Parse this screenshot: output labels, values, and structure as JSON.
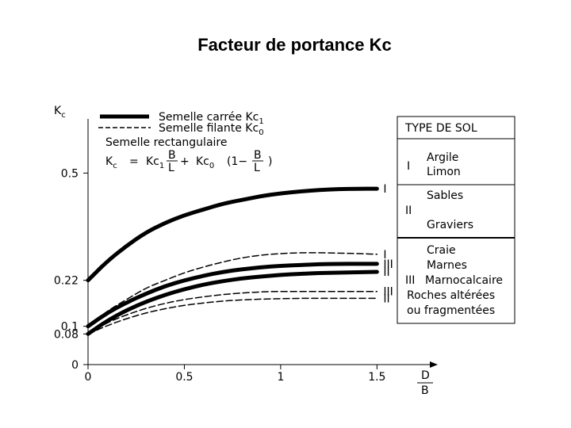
{
  "title": "Facteur de portance Kc",
  "chart_data": {
    "type": "line",
    "xlabel": {
      "num": "D",
      "den": "B"
    },
    "ylabel": {
      "base": "K",
      "sub": "c"
    },
    "xlim": [
      0,
      1.7
    ],
    "ylim": [
      0,
      0.62
    ],
    "x_ticks": [
      {
        "value": 0,
        "label": "0"
      },
      {
        "value": 0.5,
        "label": "0.5"
      },
      {
        "value": 1,
        "label": "1"
      },
      {
        "value": 1.5,
        "label": "1.5"
      }
    ],
    "y_ticks": [
      {
        "value": 0,
        "label": "0"
      },
      {
        "value": 0.08,
        "label": "0.08"
      },
      {
        "value": 0.1,
        "label": "0.1"
      },
      {
        "value": 0.22,
        "label": "0.22"
      },
      {
        "value": 0.5,
        "label": "0.5"
      }
    ],
    "legend": {
      "solid": {
        "text": "Semelle carrée Kc",
        "sub": "1"
      },
      "dashed": {
        "text": "Semelle filante Kc",
        "sub": "0"
      },
      "rect_title": "Semelle rectangulaire",
      "formula": {
        "lhs": "K",
        "lhs_sub": "c",
        "eq": "=",
        "t1": "Kc",
        "t1_sub": "1",
        "plus": "+",
        "t2": "Kc",
        "t2_sub": "0",
        "paren": "(1−",
        "close": ")",
        "frac_num": "B",
        "frac_den": "L"
      }
    },
    "series": [
      {
        "style": "solid",
        "soil": "I",
        "x": [
          0,
          0.1,
          0.2,
          0.3,
          0.4,
          0.5,
          0.6,
          0.7,
          0.8,
          0.9,
          1.0,
          1.1,
          1.2,
          1.3,
          1.4,
          1.5
        ],
        "y": [
          0.22,
          0.27,
          0.31,
          0.345,
          0.37,
          0.39,
          0.405,
          0.42,
          0.43,
          0.44,
          0.447,
          0.452,
          0.456,
          0.458,
          0.459,
          0.459
        ]
      },
      {
        "style": "dashed",
        "soil": "I",
        "x": [
          0,
          0.1,
          0.2,
          0.3,
          0.4,
          0.5,
          0.6,
          0.7,
          0.8,
          0.9,
          1.0,
          1.1,
          1.2,
          1.3,
          1.4,
          1.5
        ],
        "y": [
          0.1,
          0.14,
          0.17,
          0.2,
          0.22,
          0.24,
          0.255,
          0.268,
          0.279,
          0.286,
          0.29,
          0.292,
          0.292,
          0.291,
          0.29,
          0.288
        ]
      },
      {
        "style": "solid",
        "soil": "III",
        "x": [
          0,
          0.1,
          0.2,
          0.3,
          0.4,
          0.5,
          0.6,
          0.7,
          0.8,
          0.9,
          1.0,
          1.1,
          1.2,
          1.3,
          1.4,
          1.5
        ],
        "y": [
          0.1,
          0.135,
          0.162,
          0.185,
          0.205,
          0.22,
          0.232,
          0.242,
          0.249,
          0.254,
          0.258,
          0.26,
          0.262,
          0.263,
          0.263,
          0.263
        ]
      },
      {
        "style": "solid",
        "soil": "II",
        "x": [
          0,
          0.1,
          0.2,
          0.3,
          0.4,
          0.5,
          0.6,
          0.7,
          0.8,
          0.9,
          1.0,
          1.1,
          1.2,
          1.3,
          1.4,
          1.5
        ],
        "y": [
          0.08,
          0.115,
          0.142,
          0.164,
          0.182,
          0.197,
          0.209,
          0.218,
          0.225,
          0.23,
          0.234,
          0.237,
          0.239,
          0.24,
          0.241,
          0.242
        ]
      },
      {
        "style": "dashed",
        "soil": "III",
        "x": [
          0,
          0.1,
          0.2,
          0.3,
          0.4,
          0.5,
          0.6,
          0.7,
          0.8,
          0.9,
          1.0,
          1.1,
          1.2,
          1.3,
          1.4,
          1.5
        ],
        "y": [
          0.08,
          0.11,
          0.13,
          0.147,
          0.16,
          0.17,
          0.177,
          0.183,
          0.187,
          0.19,
          0.191,
          0.191,
          0.191,
          0.191,
          0.191,
          0.191
        ]
      },
      {
        "style": "dashed",
        "soil": "II",
        "x": [
          0,
          0.1,
          0.2,
          0.3,
          0.4,
          0.5,
          0.6,
          0.7,
          0.8,
          0.9,
          1.0,
          1.1,
          1.2,
          1.3,
          1.4,
          1.5
        ],
        "y": [
          0.08,
          0.102,
          0.12,
          0.135,
          0.146,
          0.155,
          0.161,
          0.166,
          0.169,
          0.171,
          0.172,
          0.173,
          0.173,
          0.173,
          0.173,
          0.173
        ]
      }
    ],
    "end_labels": [
      {
        "text": "I",
        "y": 0.459
      },
      {
        "text": "I",
        "y": 0.288
      },
      {
        "text": "III",
        "y": 0.263
      },
      {
        "text": "II",
        "y": 0.242
      },
      {
        "text": "III",
        "y": 0.191
      },
      {
        "text": "II",
        "y": 0.173
      }
    ],
    "soil_table": {
      "header": "TYPE DE SOL",
      "rows": [
        {
          "roman": "I",
          "lines": [
            "Argile",
            "Limon"
          ]
        },
        {
          "roman": "II",
          "lines": [
            "Sables",
            "Graviers"
          ]
        },
        {
          "roman": "III",
          "lines": [
            "Craie",
            "Marnes",
            "Marnocalcaire",
            "Roches altérées",
            "ou fragmentées"
          ]
        }
      ]
    }
  }
}
